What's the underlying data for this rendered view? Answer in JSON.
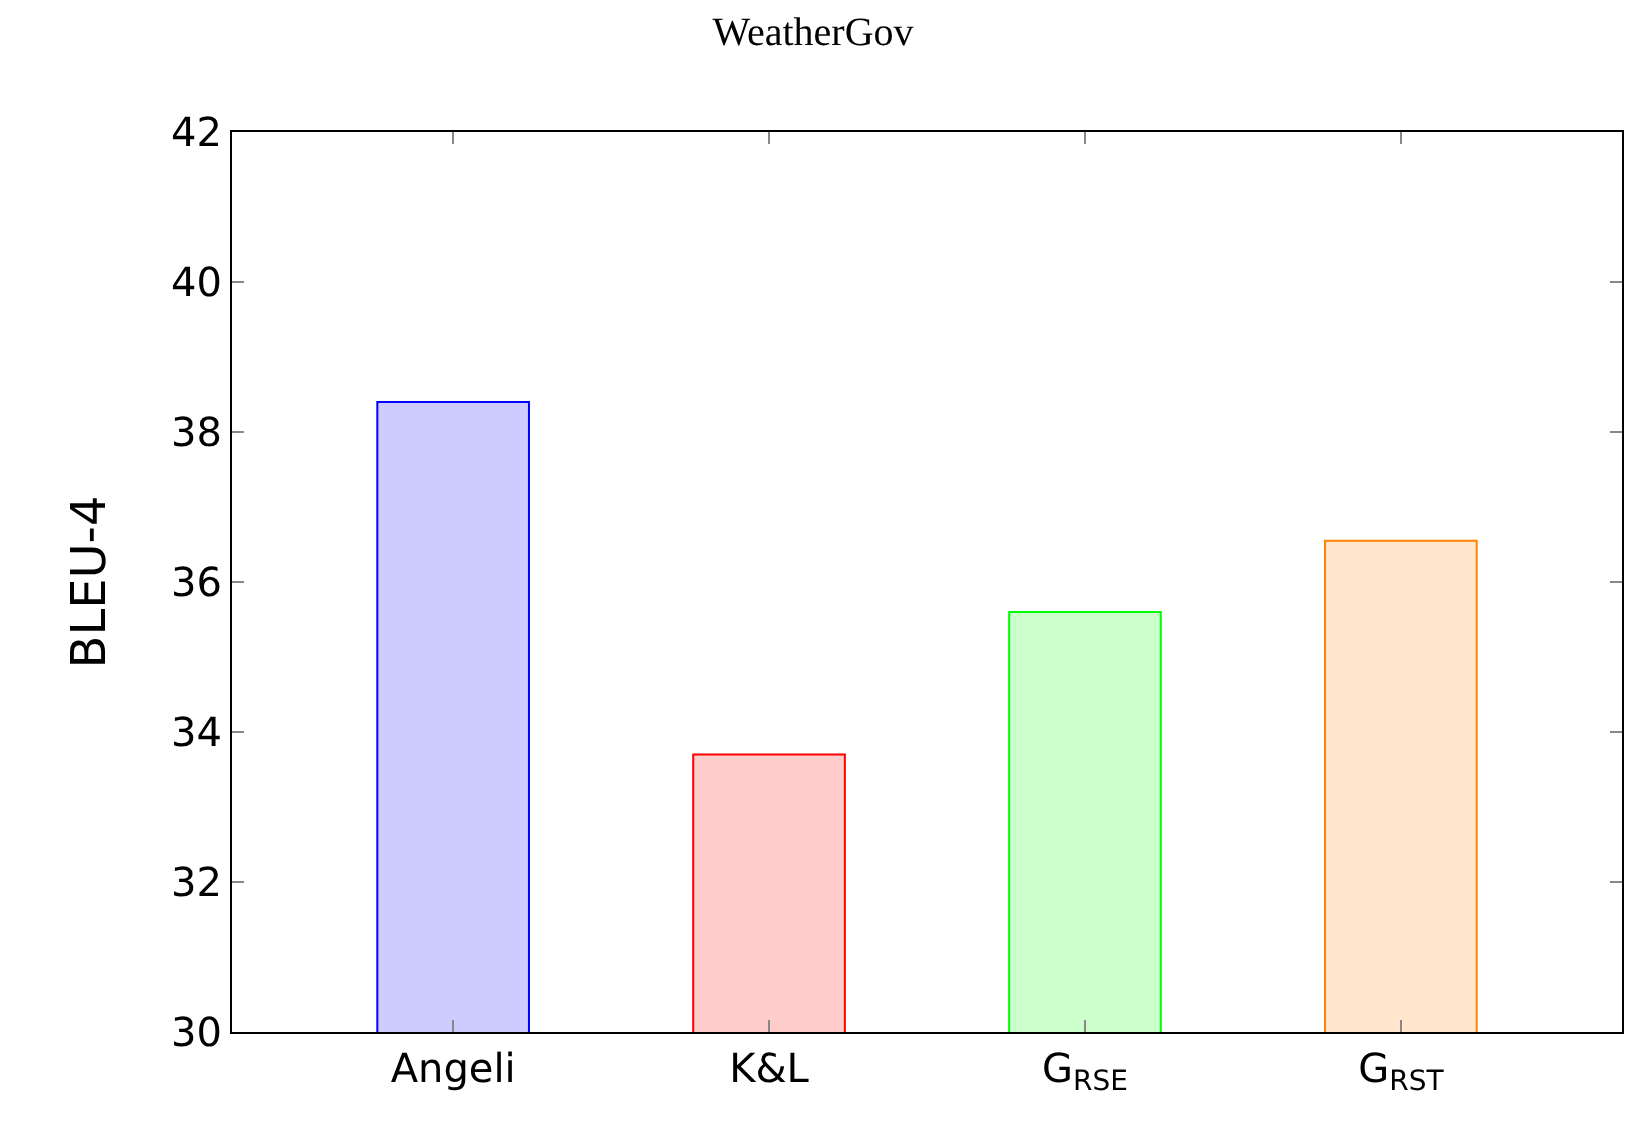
{
  "chart_data": {
    "type": "bar",
    "title": "WeatherGov",
    "ylabel": "BLEU-4",
    "categories": [
      "Angeli",
      "K&L",
      "G$_{RSE}$",
      "G$_{RST}$"
    ],
    "values": [
      38.4,
      33.7,
      35.6,
      36.55
    ],
    "colors": [
      "#ccccff",
      "#ffcccc",
      "#ccffcc",
      "#ffe6cc"
    ],
    "ylim": [
      30,
      42
    ],
    "yticks": [
      30,
      32,
      34,
      36,
      38,
      40,
      42
    ]
  }
}
